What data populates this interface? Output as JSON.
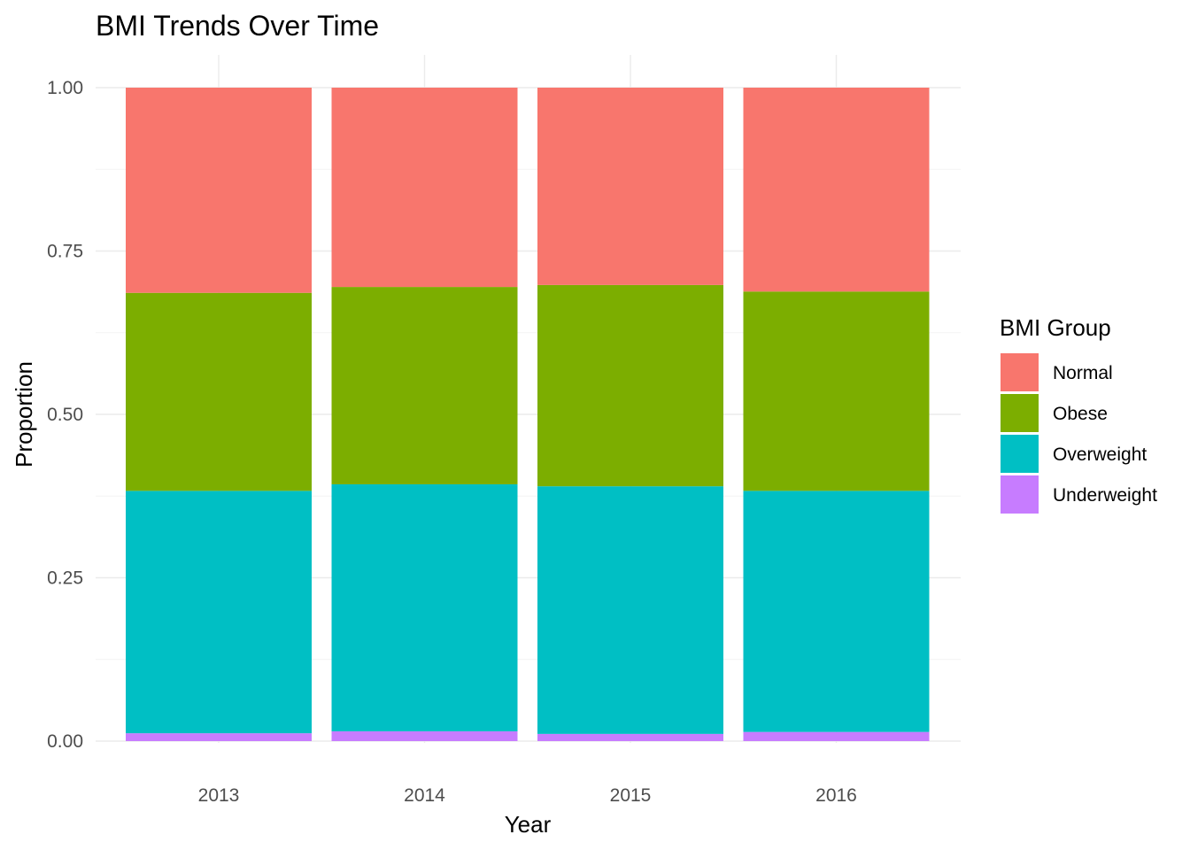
{
  "chart_data": {
    "type": "bar",
    "stacked": true,
    "title": "BMI Trends Over Time",
    "xlabel": "Year",
    "ylabel": "Proportion",
    "ylim": [
      0,
      1
    ],
    "yticks": [
      "0.00",
      "0.25",
      "0.50",
      "0.75",
      "1.00"
    ],
    "categories": [
      "2013",
      "2014",
      "2015",
      "2016"
    ],
    "grid": true,
    "legend": {
      "title": "BMI Group",
      "position": "right"
    },
    "series": [
      {
        "name": "Underweight",
        "color": "#C77CFF",
        "values": [
          0.012,
          0.015,
          0.011,
          0.014
        ]
      },
      {
        "name": "Overweight",
        "color": "#00BFC4",
        "values": [
          0.371,
          0.378,
          0.379,
          0.369
        ]
      },
      {
        "name": "Obese",
        "color": "#7CAE00",
        "values": [
          0.303,
          0.302,
          0.308,
          0.305
        ]
      },
      {
        "name": "Normal",
        "color": "#F8766D",
        "values": [
          0.314,
          0.305,
          0.302,
          0.312
        ]
      }
    ],
    "legend_order": [
      "Normal",
      "Obese",
      "Overweight",
      "Underweight"
    ]
  }
}
